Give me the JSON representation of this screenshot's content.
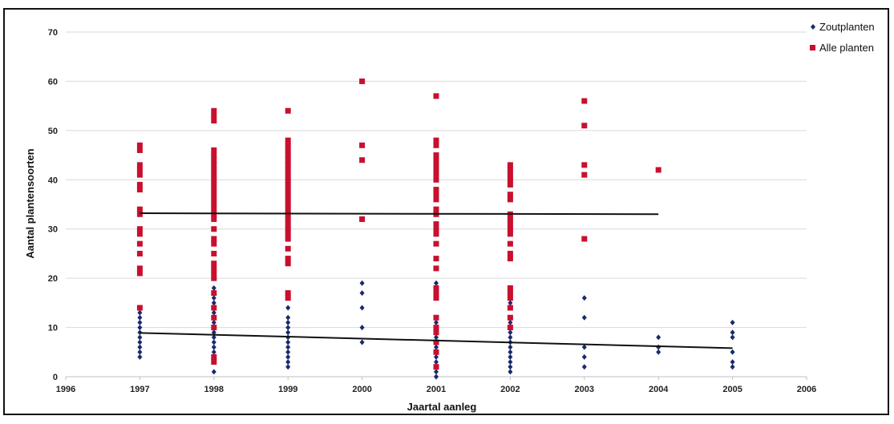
{
  "chart_data": {
    "type": "scatter",
    "title": "",
    "xlabel": "Jaartal aanleg",
    "ylabel": "Aantal plantensoorten",
    "xlim": [
      1996,
      2006
    ],
    "ylim": [
      0,
      70
    ],
    "xticks": [
      "1996",
      "1997",
      "1998",
      "1999",
      "2000",
      "2001",
      "2002",
      "2003",
      "2004",
      "2005",
      "2006"
    ],
    "yticks": [
      "0",
      "10",
      "20",
      "30",
      "40",
      "50",
      "60",
      "70"
    ],
    "grid": true,
    "legend_position": "top-right",
    "series": [
      {
        "name": "Zoutplanten",
        "color": "#1a2a6c",
        "marker": "diamond",
        "points": [
          [
            1997,
            4
          ],
          [
            1997,
            5
          ],
          [
            1997,
            6
          ],
          [
            1997,
            7
          ],
          [
            1997,
            8
          ],
          [
            1997,
            9
          ],
          [
            1997,
            10
          ],
          [
            1997,
            11
          ],
          [
            1997,
            12
          ],
          [
            1997,
            13
          ],
          [
            1998,
            1
          ],
          [
            1998,
            3
          ],
          [
            1998,
            5
          ],
          [
            1998,
            6
          ],
          [
            1998,
            7
          ],
          [
            1998,
            8
          ],
          [
            1998,
            9
          ],
          [
            1998,
            10
          ],
          [
            1998,
            11
          ],
          [
            1998,
            12
          ],
          [
            1998,
            13
          ],
          [
            1998,
            14
          ],
          [
            1998,
            15
          ],
          [
            1998,
            16
          ],
          [
            1998,
            17
          ],
          [
            1998,
            18
          ],
          [
            1998,
            20
          ],
          [
            1999,
            2
          ],
          [
            1999,
            3
          ],
          [
            1999,
            4
          ],
          [
            1999,
            5
          ],
          [
            1999,
            6
          ],
          [
            1999,
            7
          ],
          [
            1999,
            8
          ],
          [
            1999,
            9
          ],
          [
            1999,
            10
          ],
          [
            1999,
            11
          ],
          [
            1999,
            12
          ],
          [
            1999,
            14
          ],
          [
            2000,
            7
          ],
          [
            2000,
            10
          ],
          [
            2000,
            14
          ],
          [
            2000,
            17
          ],
          [
            2000,
            19
          ],
          [
            2001,
            0
          ],
          [
            2001,
            1
          ],
          [
            2001,
            2
          ],
          [
            2001,
            3
          ],
          [
            2001,
            4
          ],
          [
            2001,
            5
          ],
          [
            2001,
            6
          ],
          [
            2001,
            7
          ],
          [
            2001,
            8
          ],
          [
            2001,
            9
          ],
          [
            2001,
            10
          ],
          [
            2001,
            11
          ],
          [
            2001,
            12
          ],
          [
            2001,
            16
          ],
          [
            2001,
            19
          ],
          [
            2002,
            1
          ],
          [
            2002,
            2
          ],
          [
            2002,
            3
          ],
          [
            2002,
            4
          ],
          [
            2002,
            5
          ],
          [
            2002,
            6
          ],
          [
            2002,
            7
          ],
          [
            2002,
            8
          ],
          [
            2002,
            9
          ],
          [
            2002,
            10
          ],
          [
            2002,
            11
          ],
          [
            2002,
            12
          ],
          [
            2002,
            14
          ],
          [
            2002,
            15
          ],
          [
            2002,
            16
          ],
          [
            2003,
            2
          ],
          [
            2003,
            4
          ],
          [
            2003,
            6
          ],
          [
            2003,
            12
          ],
          [
            2003,
            16
          ],
          [
            2004,
            5
          ],
          [
            2004,
            6
          ],
          [
            2004,
            8
          ],
          [
            2005,
            2
          ],
          [
            2005,
            3
          ],
          [
            2005,
            5
          ],
          [
            2005,
            8
          ],
          [
            2005,
            9
          ],
          [
            2005,
            11
          ]
        ],
        "trend": [
          [
            1997,
            8.9
          ],
          [
            2005,
            5.8
          ]
        ]
      },
      {
        "name": "Alle planten",
        "color": "#c8102e",
        "marker": "square",
        "points": [
          [
            1997,
            14
          ],
          [
            1997,
            21
          ],
          [
            1997,
            22
          ],
          [
            1997,
            25
          ],
          [
            1997,
            27
          ],
          [
            1997,
            29
          ],
          [
            1997,
            30
          ],
          [
            1997,
            33
          ],
          [
            1997,
            34
          ],
          [
            1997,
            38
          ],
          [
            1997,
            39
          ],
          [
            1997,
            41
          ],
          [
            1997,
            42
          ],
          [
            1997,
            43
          ],
          [
            1997,
            46
          ],
          [
            1997,
            47
          ],
          [
            1998,
            3
          ],
          [
            1998,
            4
          ],
          [
            1998,
            10
          ],
          [
            1998,
            12
          ],
          [
            1998,
            14
          ],
          [
            1998,
            17
          ],
          [
            1998,
            20
          ],
          [
            1998,
            21
          ],
          [
            1998,
            22
          ],
          [
            1998,
            23
          ],
          [
            1998,
            25
          ],
          [
            1998,
            27
          ],
          [
            1998,
            28
          ],
          [
            1998,
            30
          ],
          [
            1998,
            32
          ],
          [
            1998,
            33
          ],
          [
            1998,
            34
          ],
          [
            1998,
            35
          ],
          [
            1998,
            36
          ],
          [
            1998,
            37
          ],
          [
            1998,
            38
          ],
          [
            1998,
            39
          ],
          [
            1998,
            40
          ],
          [
            1998,
            41
          ],
          [
            1998,
            42
          ],
          [
            1998,
            43
          ],
          [
            1998,
            44
          ],
          [
            1998,
            45
          ],
          [
            1998,
            46
          ],
          [
            1998,
            52
          ],
          [
            1998,
            53
          ],
          [
            1998,
            54
          ],
          [
            1999,
            16
          ],
          [
            1999,
            17
          ],
          [
            1999,
            23
          ],
          [
            1999,
            24
          ],
          [
            1999,
            26
          ],
          [
            1999,
            28
          ],
          [
            1999,
            29
          ],
          [
            1999,
            30
          ],
          [
            1999,
            31
          ],
          [
            1999,
            32
          ],
          [
            1999,
            33
          ],
          [
            1999,
            34
          ],
          [
            1999,
            35
          ],
          [
            1999,
            36
          ],
          [
            1999,
            37
          ],
          [
            1999,
            38
          ],
          [
            1999,
            39
          ],
          [
            1999,
            40
          ],
          [
            1999,
            41
          ],
          [
            1999,
            42
          ],
          [
            1999,
            43
          ],
          [
            1999,
            44
          ],
          [
            1999,
            45
          ],
          [
            1999,
            46
          ],
          [
            1999,
            47
          ],
          [
            1999,
            48
          ],
          [
            1999,
            54
          ],
          [
            2000,
            32
          ],
          [
            2000,
            44
          ],
          [
            2000,
            47
          ],
          [
            2000,
            60
          ],
          [
            2001,
            2
          ],
          [
            2001,
            5
          ],
          [
            2001,
            7
          ],
          [
            2001,
            9
          ],
          [
            2001,
            10
          ],
          [
            2001,
            12
          ],
          [
            2001,
            16
          ],
          [
            2001,
            17
          ],
          [
            2001,
            18
          ],
          [
            2001,
            22
          ],
          [
            2001,
            24
          ],
          [
            2001,
            27
          ],
          [
            2001,
            29
          ],
          [
            2001,
            30
          ],
          [
            2001,
            31
          ],
          [
            2001,
            33
          ],
          [
            2001,
            34
          ],
          [
            2001,
            36
          ],
          [
            2001,
            37
          ],
          [
            2001,
            38
          ],
          [
            2001,
            40
          ],
          [
            2001,
            41
          ],
          [
            2001,
            42
          ],
          [
            2001,
            43
          ],
          [
            2001,
            44
          ],
          [
            2001,
            45
          ],
          [
            2001,
            47
          ],
          [
            2001,
            48
          ],
          [
            2001,
            57
          ],
          [
            2002,
            10
          ],
          [
            2002,
            12
          ],
          [
            2002,
            14
          ],
          [
            2002,
            16
          ],
          [
            2002,
            17
          ],
          [
            2002,
            18
          ],
          [
            2002,
            24
          ],
          [
            2002,
            25
          ],
          [
            2002,
            27
          ],
          [
            2002,
            29
          ],
          [
            2002,
            30
          ],
          [
            2002,
            31
          ],
          [
            2002,
            32
          ],
          [
            2002,
            33
          ],
          [
            2002,
            36
          ],
          [
            2002,
            37
          ],
          [
            2002,
            39
          ],
          [
            2002,
            40
          ],
          [
            2002,
            41
          ],
          [
            2002,
            42
          ],
          [
            2002,
            43
          ],
          [
            2003,
            28
          ],
          [
            2003,
            41
          ],
          [
            2003,
            43
          ],
          [
            2003,
            51
          ],
          [
            2003,
            56
          ],
          [
            2004,
            42
          ]
        ],
        "trend": [
          [
            1997,
            33.2
          ],
          [
            2004,
            33
          ]
        ]
      }
    ]
  }
}
